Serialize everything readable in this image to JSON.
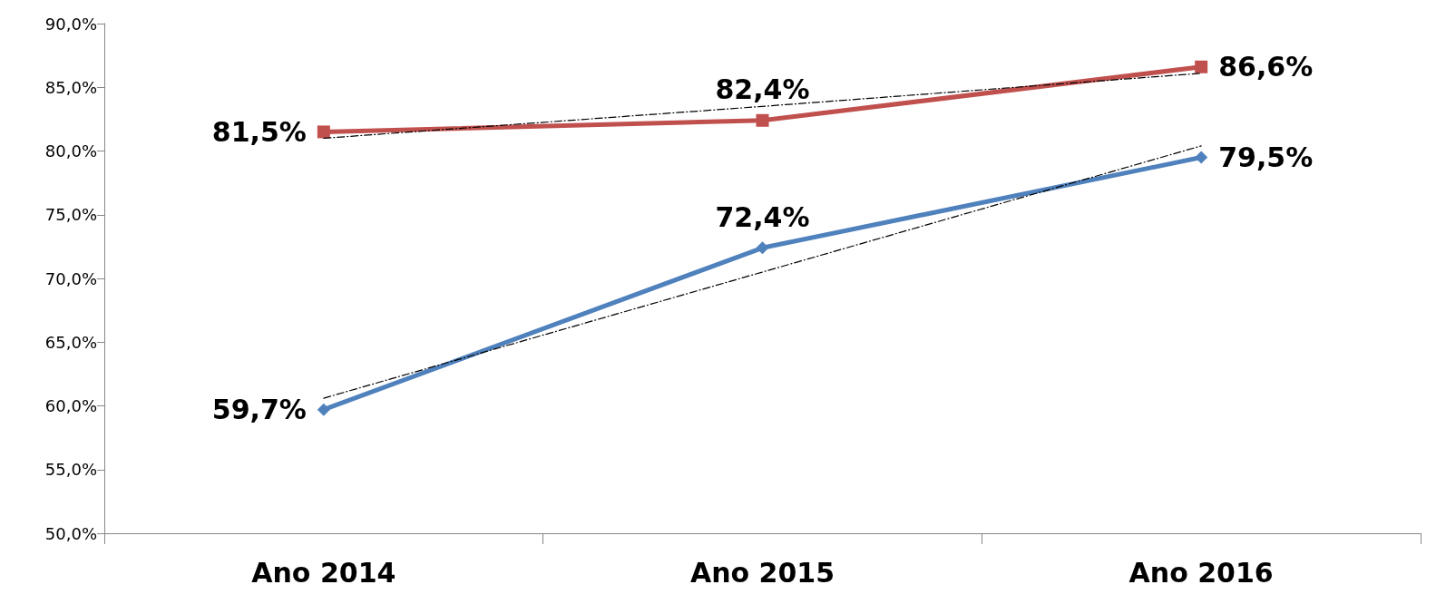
{
  "chart_data": {
    "type": "line",
    "categories": [
      "Ano 2014",
      "Ano 2015",
      "Ano 2016"
    ],
    "series": [
      {
        "color": "#c0504d",
        "values": [
          81.5,
          82.4,
          86.6
        ],
        "value_labels": [
          "81,5%",
          "82,4%",
          "86,6%"
        ],
        "marker": "square",
        "line_style": "solid"
      },
      {
        "color": "#4f81bd",
        "values": [
          59.7,
          72.4,
          79.5
        ],
        "value_labels": [
          "59,7%",
          "72,4%",
          "79,5%"
        ],
        "marker": "diamond",
        "line_style": "solid"
      },
      {
        "color": "#000000",
        "x": [
          "Ano 2014",
          "Ano 2015",
          "Ano 2016"
        ],
        "values": [
          81.0,
          83.5,
          86.1
        ],
        "marker": "none",
        "line_style": "dashed"
      },
      {
        "color": "#000000",
        "x": [
          "Ano 2014",
          "Ano 2015",
          "Ano 2016"
        ],
        "values": [
          60.6,
          70.5,
          80.4
        ],
        "marker": "none",
        "line_style": "dashed"
      }
    ],
    "ylim": [
      50,
      90
    ],
    "yticks": [
      {
        "value": 50,
        "label": "50,0%"
      },
      {
        "value": 55,
        "label": "55,0%"
      },
      {
        "value": 60,
        "label": "60,0%"
      },
      {
        "value": 65,
        "label": "65,0%"
      },
      {
        "value": 70,
        "label": "70,0%"
      },
      {
        "value": 75,
        "label": "75,0%"
      },
      {
        "value": 80,
        "label": "80,0%"
      },
      {
        "value": 85,
        "label": "85,0%"
      },
      {
        "value": 90,
        "label": "90,0%"
      }
    ],
    "grid": false
  }
}
